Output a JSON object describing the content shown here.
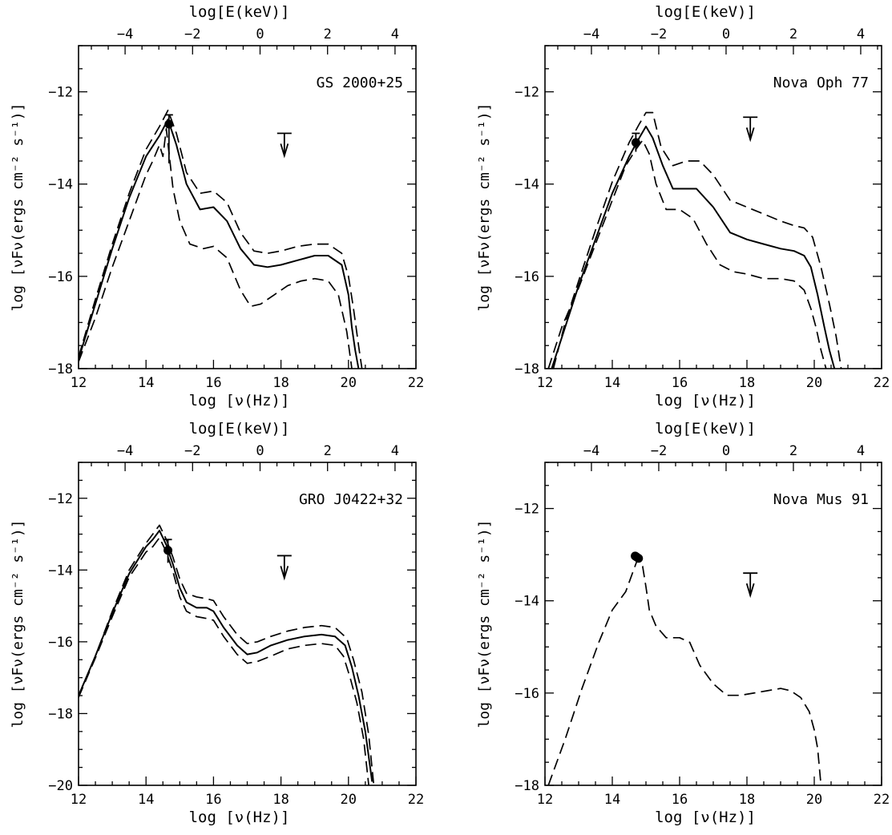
{
  "chart_data": [
    {
      "type": "line",
      "name": "GS 2000+25",
      "xlabel": "log [ν(Hz)]",
      "ylabel": "log [νFν(ergs cm⁻² s⁻¹)]",
      "top_xlabel": "log[E(keV)]",
      "xlim": [
        12,
        22
      ],
      "ylim": [
        -18,
        -11
      ],
      "top_xlim": [
        -5.38,
        4.62
      ],
      "xticks": [
        12,
        14,
        16,
        18,
        20,
        22
      ],
      "yticks": [
        -18,
        -16,
        -14,
        -12
      ],
      "top_xticks": [
        -4,
        -2,
        0,
        2,
        4
      ],
      "series": [
        {
          "style": "solid",
          "x": [
            12,
            12.5,
            13,
            13.5,
            14,
            14.4,
            14.65,
            14.9,
            15.2,
            15.6,
            16.0,
            16.4,
            16.8,
            17.2,
            17.6,
            18.0,
            18.5,
            19.0,
            19.4,
            19.8,
            20.0,
            20.1,
            20.2,
            20.3
          ],
          "y": [
            -17.8,
            -16.6,
            -15.4,
            -14.3,
            -13.4,
            -12.95,
            -12.6,
            -13.15,
            -14.0,
            -14.55,
            -14.5,
            -14.8,
            -15.4,
            -15.75,
            -15.8,
            -15.75,
            -15.65,
            -15.55,
            -15.55,
            -15.75,
            -16.4,
            -17.1,
            -17.6,
            -18.0
          ]
        },
        {
          "style": "dashed",
          "x": [
            12,
            12.5,
            13,
            13.5,
            14,
            14.4,
            14.65,
            14.9,
            15.2,
            15.6,
            16.0,
            16.4,
            16.8,
            17.2,
            17.6,
            18.0,
            18.5,
            19.0,
            19.4,
            19.8,
            20.0,
            20.15,
            20.3,
            20.4
          ],
          "y": [
            -17.75,
            -16.5,
            -15.3,
            -14.2,
            -13.25,
            -12.75,
            -12.4,
            -12.9,
            -13.75,
            -14.2,
            -14.15,
            -14.4,
            -15.05,
            -15.45,
            -15.5,
            -15.45,
            -15.35,
            -15.3,
            -15.3,
            -15.5,
            -16.0,
            -16.7,
            -17.5,
            -18.0
          ]
        },
        {
          "style": "dashed",
          "x": [
            12,
            12.5,
            13,
            13.5,
            14,
            14.2,
            14.4,
            14.5,
            14.6,
            14.8,
            15.0,
            15.3,
            15.7,
            16.0,
            16.4,
            16.8,
            17.1,
            17.4,
            17.8,
            18.2,
            18.6,
            19.0,
            19.4,
            19.7,
            19.95,
            20.1
          ],
          "y": [
            -17.85,
            -16.9,
            -15.8,
            -14.8,
            -13.8,
            -13.5,
            -13.15,
            -13.4,
            -12.8,
            -14.1,
            -14.8,
            -15.3,
            -15.4,
            -15.35,
            -15.6,
            -16.3,
            -16.65,
            -16.6,
            -16.4,
            -16.2,
            -16.1,
            -16.05,
            -16.1,
            -16.4,
            -17.2,
            -18.0
          ]
        }
      ],
      "points": [
        {
          "x": 14.68,
          "y": -12.7
        }
      ],
      "errorbars": [
        {
          "x": 14.68,
          "y_low": -13.55,
          "y_high": -12.5
        }
      ],
      "upper_limits": [
        {
          "x": 18.1,
          "y": -12.9
        }
      ],
      "annotation": "GS 2000+25",
      "label_position": "top-right"
    },
    {
      "type": "line",
      "name": "Nova Oph 77",
      "xlabel": "log [ν(Hz)]",
      "ylabel": "log [νFν(ergs cm⁻² s⁻¹)]",
      "top_xlabel": "log[E(keV)]",
      "xlim": [
        12,
        22
      ],
      "ylim": [
        -18,
        -11
      ],
      "top_xlim": [
        -5.38,
        4.62
      ],
      "xticks": [
        12,
        14,
        16,
        18,
        20,
        22
      ],
      "yticks": [
        -18,
        -16,
        -14,
        -12
      ],
      "top_xticks": [
        -4,
        -2,
        0,
        2,
        4
      ],
      "series": [
        {
          "style": "solid",
          "x": [
            12.2,
            12.6,
            13,
            13.5,
            14,
            14.5,
            14.8,
            15.0,
            15.2,
            15.5,
            15.8,
            16.1,
            16.5,
            17.0,
            17.5,
            18.0,
            18.5,
            19.0,
            19.4,
            19.7,
            19.9,
            20.1,
            20.3,
            20.45,
            20.6
          ],
          "y": [
            -18.0,
            -17.1,
            -16.2,
            -15.2,
            -14.2,
            -13.4,
            -13.0,
            -12.75,
            -13.0,
            -13.6,
            -14.1,
            -14.1,
            -14.1,
            -14.5,
            -15.05,
            -15.2,
            -15.3,
            -15.4,
            -15.45,
            -15.55,
            -15.8,
            -16.4,
            -17.1,
            -17.6,
            -18.0
          ]
        },
        {
          "style": "dashed",
          "x": [
            12.25,
            12.6,
            13,
            13.5,
            14,
            14.5,
            14.8,
            15.0,
            15.2,
            15.45,
            15.8,
            16.2,
            16.6,
            17.0,
            17.5,
            18.0,
            18.5,
            19.0,
            19.4,
            19.7,
            19.95,
            20.2,
            20.45,
            20.65,
            20.8
          ],
          "y": [
            -18.0,
            -17.0,
            -16.1,
            -15.0,
            -13.95,
            -13.1,
            -12.7,
            -12.45,
            -12.45,
            -13.2,
            -13.6,
            -13.5,
            -13.5,
            -13.8,
            -14.35,
            -14.5,
            -14.65,
            -14.8,
            -14.9,
            -14.95,
            -15.15,
            -15.8,
            -16.6,
            -17.3,
            -18.0
          ]
        },
        {
          "style": "dashed",
          "x": [
            12.1,
            12.5,
            13,
            13.5,
            14,
            14.4,
            14.7,
            14.9,
            15.1,
            15.3,
            15.6,
            16.0,
            16.4,
            16.8,
            17.2,
            17.6,
            18.0,
            18.5,
            19.0,
            19.4,
            19.7,
            19.9,
            20.05,
            20.2,
            20.35
          ],
          "y": [
            -18.0,
            -17.1,
            -16.25,
            -15.3,
            -14.35,
            -13.6,
            -13.25,
            -13.05,
            -13.35,
            -14.0,
            -14.55,
            -14.55,
            -14.75,
            -15.3,
            -15.75,
            -15.9,
            -15.95,
            -16.05,
            -16.05,
            -16.1,
            -16.3,
            -16.7,
            -17.1,
            -17.6,
            -18.0
          ]
        }
      ],
      "points": [
        {
          "x": 14.7,
          "y": -13.1
        }
      ],
      "errorbars": [
        {
          "x": 14.7,
          "y_low": -13.3,
          "y_high": -12.9
        }
      ],
      "upper_limits": [
        {
          "x": 18.1,
          "y": -12.55
        }
      ],
      "annotation": "Nova Oph 77",
      "label_position": "top-right"
    },
    {
      "type": "line",
      "name": "GRO J0422+32",
      "xlabel": "log [ν(Hz)]",
      "ylabel": "log [νFν(ergs cm⁻² s⁻¹)]",
      "top_xlabel": "log[E(keV)]",
      "xlim": [
        12,
        22
      ],
      "ylim": [
        -20,
        -11
      ],
      "top_xlim": [
        -5.38,
        4.62
      ],
      "xticks": [
        12,
        14,
        16,
        18,
        20,
        22
      ],
      "yticks": [
        -20,
        -18,
        -16,
        -14,
        -12
      ],
      "top_xticks": [
        -4,
        -2,
        0,
        2,
        4
      ],
      "series": [
        {
          "style": "solid",
          "x": [
            12,
            12.5,
            13,
            13.5,
            14,
            14.2,
            14.4,
            14.6,
            14.8,
            15.0,
            15.2,
            15.5,
            15.8,
            16.0,
            16.3,
            16.7,
            17.0,
            17.3,
            17.7,
            18.2,
            18.7,
            19.2,
            19.6,
            19.9,
            20.1,
            20.3,
            20.5,
            20.7
          ],
          "y": [
            -17.5,
            -16.4,
            -15.2,
            -14.1,
            -13.35,
            -13.15,
            -12.9,
            -13.3,
            -13.85,
            -14.5,
            -14.9,
            -15.05,
            -15.05,
            -15.15,
            -15.6,
            -16.1,
            -16.35,
            -16.3,
            -16.1,
            -15.95,
            -15.85,
            -15.8,
            -15.85,
            -16.1,
            -16.7,
            -17.5,
            -18.5,
            -19.9
          ]
        },
        {
          "style": "dashed",
          "x": [
            12,
            12.5,
            13,
            13.5,
            14,
            14.2,
            14.4,
            14.6,
            14.8,
            15.0,
            15.2,
            15.5,
            15.8,
            16.0,
            16.3,
            16.7,
            17.0,
            17.3,
            17.7,
            18.2,
            18.7,
            19.2,
            19.6,
            19.95,
            20.15,
            20.4,
            20.6,
            20.75
          ],
          "y": [
            -17.5,
            -16.4,
            -15.15,
            -14.0,
            -13.25,
            -13.0,
            -12.75,
            -13.15,
            -13.65,
            -14.25,
            -14.65,
            -14.75,
            -14.8,
            -14.85,
            -15.3,
            -15.8,
            -16.05,
            -16.0,
            -15.85,
            -15.7,
            -15.6,
            -15.55,
            -15.6,
            -15.9,
            -16.5,
            -17.4,
            -18.6,
            -20.0
          ]
        },
        {
          "style": "dashed",
          "x": [
            12,
            12.5,
            13,
            13.5,
            14,
            14.2,
            14.4,
            14.6,
            14.8,
            15.0,
            15.2,
            15.5,
            15.8,
            16.0,
            16.3,
            16.7,
            17.0,
            17.3,
            17.7,
            18.2,
            18.7,
            19.2,
            19.6,
            19.85,
            20.05,
            20.25,
            20.45,
            20.6
          ],
          "y": [
            -17.55,
            -16.45,
            -15.3,
            -14.2,
            -13.5,
            -13.35,
            -13.1,
            -13.5,
            -14.05,
            -14.75,
            -15.15,
            -15.3,
            -15.35,
            -15.4,
            -15.85,
            -16.35,
            -16.6,
            -16.55,
            -16.4,
            -16.2,
            -16.1,
            -16.05,
            -16.1,
            -16.4,
            -17.0,
            -17.7,
            -18.7,
            -20.0
          ]
        }
      ],
      "points": [
        {
          "x": 14.65,
          "y": -13.45
        }
      ],
      "errorbars": [
        {
          "x": 14.65,
          "y_low": -13.8,
          "y_high": -13.15
        }
      ],
      "upper_limits": [
        {
          "x": 18.1,
          "y": -13.6
        }
      ],
      "annotation": "GRO J0422+32",
      "label_position": "top-right"
    },
    {
      "type": "line",
      "name": "Nova Mus 91",
      "xlabel": "log [ν(Hz)]",
      "ylabel": "log [νFν(ergs cm⁻² s⁻¹)]",
      "top_xlabel": "log[E(keV)]",
      "xlim": [
        12,
        22
      ],
      "ylim": [
        -18,
        -11
      ],
      "top_xlim": [
        -5.38,
        4.62
      ],
      "xticks": [
        12,
        14,
        16,
        18,
        20,
        22
      ],
      "yticks": [
        -18,
        -16,
        -14,
        -12
      ],
      "top_xticks": [
        -4,
        -2,
        0,
        2,
        4
      ],
      "series": [
        {
          "style": "dashed",
          "x": [
            12.1,
            12.6,
            13.1,
            13.6,
            14.0,
            14.4,
            14.75,
            14.9,
            15.0,
            15.1,
            15.3,
            15.6,
            16.0,
            16.3,
            16.6,
            17.0,
            17.4,
            17.8,
            18.2,
            18.6,
            19.0,
            19.3,
            19.6,
            19.85,
            20.0,
            20.1,
            20.15,
            20.2
          ],
          "y": [
            -18.0,
            -17.0,
            -15.9,
            -14.9,
            -14.2,
            -13.8,
            -13.1,
            -13.25,
            -13.7,
            -14.2,
            -14.55,
            -14.8,
            -14.8,
            -14.9,
            -15.4,
            -15.8,
            -16.05,
            -16.05,
            -16.0,
            -15.95,
            -15.9,
            -15.95,
            -16.1,
            -16.4,
            -16.8,
            -17.2,
            -17.6,
            -18.0
          ]
        }
      ],
      "points": [
        {
          "x": 14.72,
          "y": -13.05
        },
        {
          "x": 14.78,
          "y": -13.08
        },
        {
          "x": 14.68,
          "y": -13.03
        }
      ],
      "errorbars": [],
      "upper_limits": [
        {
          "x": 18.1,
          "y": -13.4
        }
      ],
      "annotation": "Nova Mus 91",
      "label_position": "top-right"
    }
  ]
}
